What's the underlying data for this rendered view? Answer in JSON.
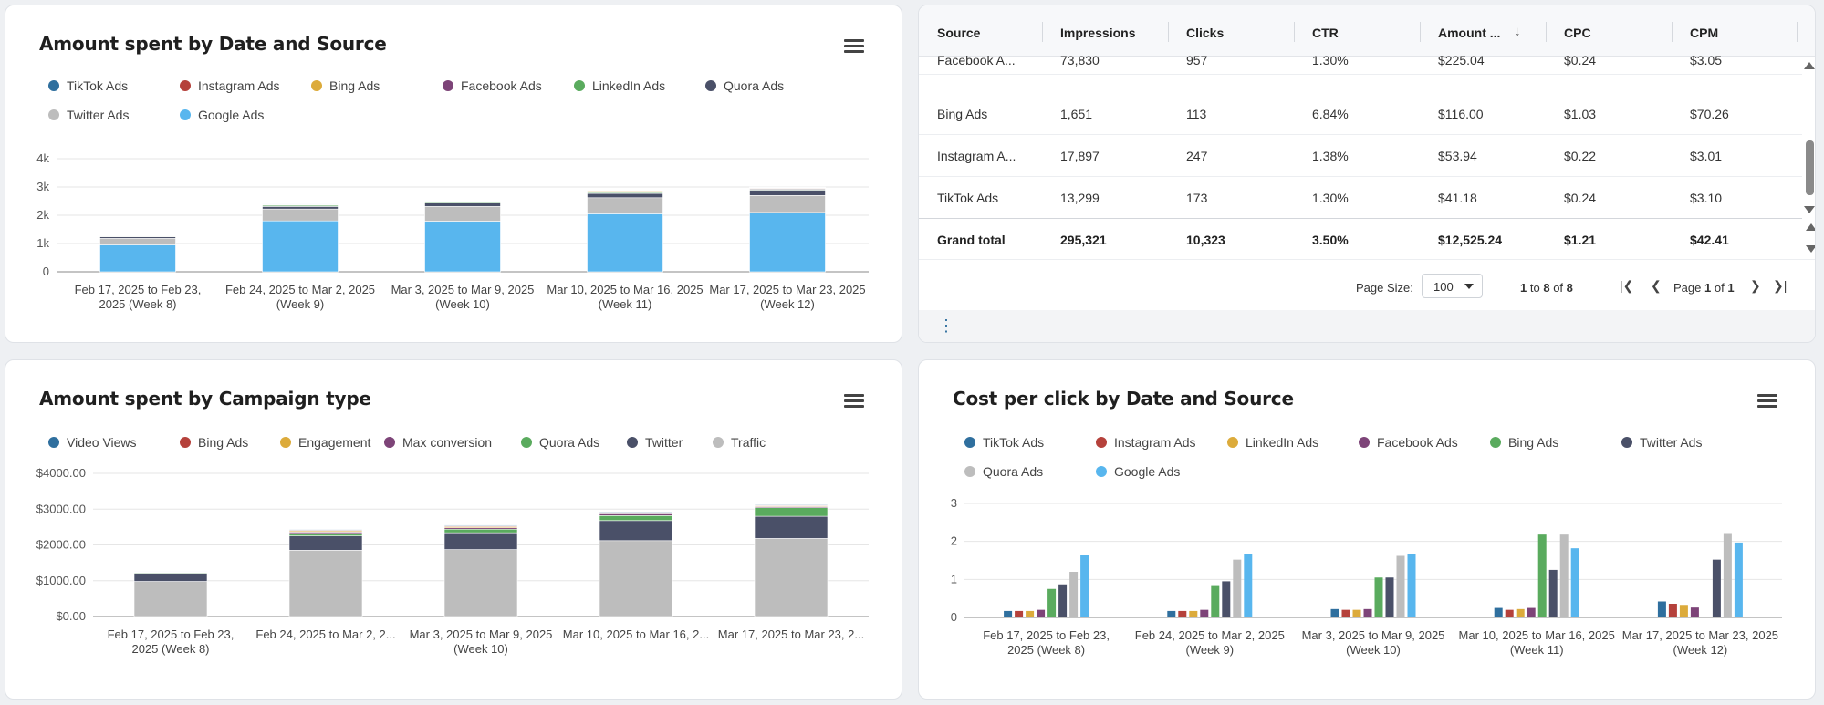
{
  "card1": {
    "title": "Amount spent by Date and Source",
    "legend": [
      {
        "label": "TikTok Ads",
        "color": "#2f6f9e"
      },
      {
        "label": "Instagram Ads",
        "color": "#b5413b"
      },
      {
        "label": "Bing Ads",
        "color": "#dcab3b"
      },
      {
        "label": "Facebook Ads",
        "color": "#7d4478"
      },
      {
        "label": "LinkedIn Ads",
        "color": "#5aab5e"
      },
      {
        "label": "Quora Ads",
        "color": "#4a5068"
      },
      {
        "label": "Twitter Ads",
        "color": "#bdbdbd"
      },
      {
        "label": "Google Ads",
        "color": "#58b6ee"
      }
    ]
  },
  "card2": {
    "columns": [
      "Source",
      "Impressions",
      "Clicks",
      "CTR",
      "Amount ...",
      "CPC",
      "CPM"
    ],
    "rows": [
      [
        "Facebook A...",
        "73,830",
        "957",
        "1.30%",
        "$225.04",
        "$0.24",
        "$3.05"
      ],
      [
        "Bing Ads",
        "1,651",
        "113",
        "6.84%",
        "$116.00",
        "$1.03",
        "$70.26"
      ],
      [
        "Instagram A...",
        "17,897",
        "247",
        "1.38%",
        "$53.94",
        "$0.22",
        "$3.01"
      ],
      [
        "TikTok Ads",
        "13,299",
        "173",
        "1.30%",
        "$41.18",
        "$0.24",
        "$3.10"
      ]
    ],
    "total": [
      "Grand total",
      "295,321",
      "10,323",
      "3.50%",
      "$12,525.24",
      "$1.21",
      "$42.41"
    ],
    "page_size_label": "Page Size:",
    "page_size_value": "100",
    "range_from": "1",
    "range_to_label": "to",
    "range_to": "8",
    "range_of_label": "of",
    "range_total": "8",
    "page_label": "Page",
    "page_current": "1",
    "page_of_label": "of",
    "page_total": "1"
  },
  "card3": {
    "title": "Amount spent by Campaign type",
    "legend": [
      {
        "label": "Video Views",
        "color": "#2f6f9e"
      },
      {
        "label": "Bing Ads",
        "color": "#b5413b"
      },
      {
        "label": "Engagement",
        "color": "#dcab3b"
      },
      {
        "label": "Max conversion",
        "color": "#7d4478"
      },
      {
        "label": "Quora Ads",
        "color": "#5aab5e"
      },
      {
        "label": "Twitter",
        "color": "#4a5068"
      },
      {
        "label": "Traffic",
        "color": "#bdbdbd"
      }
    ]
  },
  "card4": {
    "title": "Cost per click by Date and Source",
    "legend": [
      {
        "label": "TikTok Ads",
        "color": "#2f6f9e"
      },
      {
        "label": "Instagram Ads",
        "color": "#b5413b"
      },
      {
        "label": "LinkedIn Ads",
        "color": "#dcab3b"
      },
      {
        "label": "Facebook Ads",
        "color": "#7d4478"
      },
      {
        "label": "Bing Ads",
        "color": "#5aab5e"
      },
      {
        "label": "Twitter Ads",
        "color": "#4a5068"
      },
      {
        "label": "Quora Ads",
        "color": "#bdbdbd"
      },
      {
        "label": "Google Ads",
        "color": "#58b6ee"
      }
    ]
  },
  "chart_data": [
    {
      "id": "c1",
      "type": "bar",
      "stacked": true,
      "title": "Amount spent by Date and Source",
      "categories": [
        [
          "Feb 17, 2025 to Feb 23,",
          "2025 (Week 8)"
        ],
        [
          "Feb 24, 2025 to Mar 2, 2025",
          "(Week 9)"
        ],
        [
          "Mar 3, 2025 to Mar 9, 2025",
          "(Week 10)"
        ],
        [
          "Mar 10, 2025 to Mar 16, 2025",
          "(Week 11)"
        ],
        [
          "Mar 17, 2025 to Mar 23, 2025",
          "(Week 12)"
        ]
      ],
      "ylim": [
        0,
        4000
      ],
      "yticks": [
        0,
        1000,
        2000,
        3000,
        4000
      ],
      "ytick_labels": [
        "0",
        "1k",
        "2k",
        "3k",
        "4k"
      ],
      "series": [
        {
          "name": "Google Ads",
          "color": "#58b6ee",
          "values": [
            950,
            1800,
            1790,
            2050,
            2100
          ]
        },
        {
          "name": "Twitter Ads",
          "color": "#bdbdbd",
          "values": [
            230,
            420,
            520,
            570,
            600
          ]
        },
        {
          "name": "Quora Ads",
          "color": "#4a5068",
          "values": [
            60,
            90,
            120,
            150,
            190
          ]
        },
        {
          "name": "LinkedIn Ads",
          "color": "#5aab5e",
          "values": [
            15,
            40,
            30,
            30,
            30
          ]
        },
        {
          "name": "Facebook Ads",
          "color": "#7d4478",
          "values": [
            10,
            15,
            20,
            40,
            30
          ]
        },
        {
          "name": "Bing Ads",
          "color": "#dcab3b",
          "values": [
            5,
            10,
            15,
            30,
            20
          ]
        },
        {
          "name": "Instagram Ads",
          "color": "#b5413b",
          "values": [
            5,
            10,
            10,
            15,
            15
          ]
        },
        {
          "name": "TikTok Ads",
          "color": "#2f6f9e",
          "values": [
            5,
            5,
            10,
            10,
            10
          ]
        }
      ]
    },
    {
      "id": "c3",
      "type": "bar",
      "stacked": true,
      "title": "Amount spent by Campaign type",
      "categories": [
        [
          "Feb 17, 2025 to Feb 23,",
          "2025 (Week 8)"
        ],
        [
          "Feb 24, 2025 to Mar 2, 2...",
          ""
        ],
        [
          "Mar 3, 2025 to Mar 9, 2025",
          "(Week 10)"
        ],
        [
          "Mar 10, 2025 to Mar 16, 2...",
          ""
        ],
        [
          "Mar 17, 2025 to Mar 23, 2...",
          ""
        ]
      ],
      "ylim": [
        0,
        4000
      ],
      "yticks": [
        0,
        1000,
        2000,
        3000,
        4000
      ],
      "ytick_labels": [
        "$0.00",
        "$1000.00",
        "$2000.00",
        "$3000.00",
        "$4000.00"
      ],
      "series": [
        {
          "name": "Traffic",
          "color": "#bdbdbd",
          "values": [
            980,
            1850,
            1870,
            2120,
            2180
          ]
        },
        {
          "name": "Twitter",
          "color": "#4a5068",
          "values": [
            230,
            400,
            470,
            560,
            620
          ]
        },
        {
          "name": "Quora Ads",
          "color": "#5aab5e",
          "values": [
            20,
            70,
            100,
            140,
            240
          ]
        },
        {
          "name": "Max conversion",
          "color": "#7d4478",
          "values": [
            15,
            40,
            40,
            50,
            30
          ]
        },
        {
          "name": "Engagement",
          "color": "#dcab3b",
          "values": [
            10,
            30,
            30,
            20,
            20
          ]
        },
        {
          "name": "Bing Ads",
          "color": "#b5413b",
          "values": [
            10,
            20,
            20,
            20,
            20
          ]
        },
        {
          "name": "Video Views",
          "color": "#2f6f9e",
          "values": [
            5,
            20,
            20,
            20,
            20
          ]
        }
      ]
    },
    {
      "id": "c4",
      "type": "bar",
      "stacked": false,
      "title": "Cost per click by Date and Source",
      "categories": [
        [
          "Feb 17, 2025 to Feb 23,",
          "2025 (Week 8)"
        ],
        [
          "Feb 24, 2025 to Mar 2, 2025",
          "(Week 9)"
        ],
        [
          "Mar 3, 2025 to Mar 9, 2025",
          "(Week 10)"
        ],
        [
          "Mar 10, 2025 to Mar 16, 2025",
          "(Week 11)"
        ],
        [
          "Mar 17, 2025 to Mar 23, 2025",
          "(Week 12)"
        ]
      ],
      "ylim": [
        0,
        3
      ],
      "yticks": [
        0,
        1,
        2,
        3
      ],
      "ytick_labels": [
        "0",
        "1",
        "2",
        "3"
      ],
      "series": [
        {
          "name": "TikTok Ads",
          "color": "#2f6f9e",
          "values": [
            0.17,
            0.17,
            0.22,
            0.25,
            0.42
          ]
        },
        {
          "name": "Instagram Ads",
          "color": "#b5413b",
          "values": [
            0.17,
            0.17,
            0.2,
            0.2,
            0.36
          ]
        },
        {
          "name": "LinkedIn Ads",
          "color": "#dcab3b",
          "values": [
            0.17,
            0.17,
            0.2,
            0.22,
            0.33
          ]
        },
        {
          "name": "Facebook Ads",
          "color": "#7d4478",
          "values": [
            0.2,
            0.2,
            0.22,
            0.25,
            0.26
          ]
        },
        {
          "name": "Bing Ads",
          "color": "#5aab5e",
          "values": [
            0.75,
            0.85,
            1.05,
            2.18,
            0
          ]
        },
        {
          "name": "Twitter Ads",
          "color": "#4a5068",
          "values": [
            0.87,
            0.95,
            1.05,
            1.25,
            1.52
          ]
        },
        {
          "name": "Quora Ads",
          "color": "#bdbdbd",
          "values": [
            1.2,
            1.52,
            1.62,
            2.18,
            2.22
          ]
        },
        {
          "name": "Google Ads",
          "color": "#58b6ee",
          "values": [
            1.65,
            1.68,
            1.68,
            1.82,
            1.97
          ]
        }
      ]
    }
  ]
}
